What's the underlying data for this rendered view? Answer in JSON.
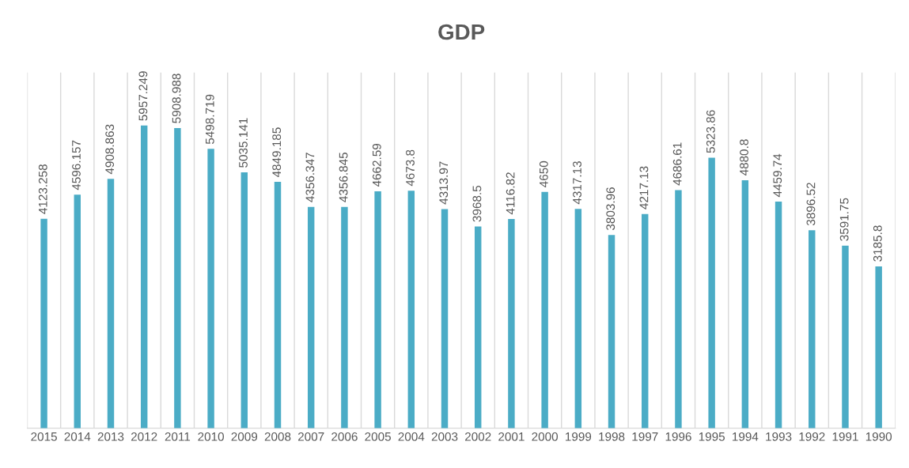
{
  "chart_data": {
    "type": "bar",
    "title": "GDP",
    "categories": [
      "2015",
      "2014",
      "2013",
      "2012",
      "2011",
      "2010",
      "2009",
      "2008",
      "2007",
      "2006",
      "2005",
      "2004",
      "2003",
      "2002",
      "2001",
      "2000",
      "1999",
      "1998",
      "1997",
      "1996",
      "1995",
      "1994",
      "1993",
      "1992",
      "1991",
      "1990"
    ],
    "values": [
      4123.258,
      4596.157,
      4908.863,
      5957.249,
      5908.988,
      5498.719,
      5035.141,
      4849.185,
      4356.347,
      4356.845,
      4662.59,
      4673.8,
      4313.97,
      3968.5,
      4116.82,
      4650,
      4317.13,
      3803.96,
      4217.13,
      4686.61,
      5323.86,
      4880.8,
      4459.74,
      3896.52,
      3591.75,
      3185.8
    ],
    "color": "#4bacc6",
    "ylim": [
      0,
      7000
    ],
    "tick_labels": "x",
    "grid": "x",
    "data_labels": true,
    "legend": false
  }
}
